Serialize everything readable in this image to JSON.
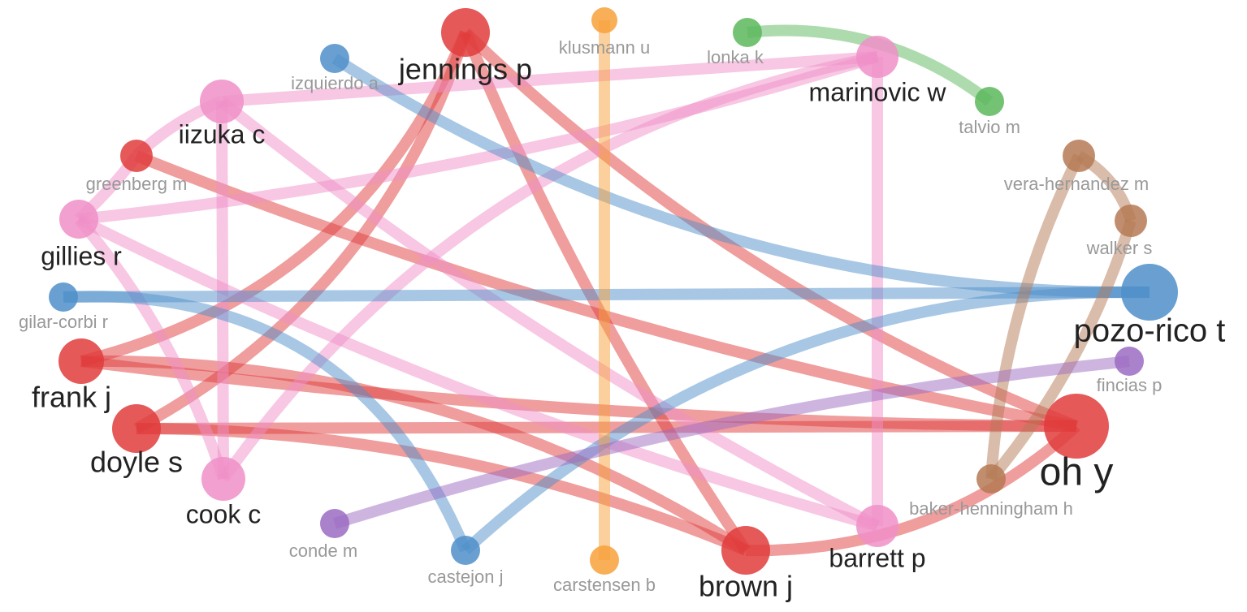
{
  "nodes": [
    {
      "label": "jennings p",
      "color": "#e03c3c"
    },
    {
      "label": "klusmann u",
      "color": "#f7a13a"
    },
    {
      "label": "lonka k",
      "color": "#5cb85c"
    },
    {
      "label": "marinovic w",
      "color": "#f08fc8"
    },
    {
      "label": "talvio m",
      "color": "#5cb85c"
    },
    {
      "label": "izquierdo a",
      "color": "#4f8fc9"
    },
    {
      "label": "iizuka c",
      "color": "#f08fc8"
    },
    {
      "label": "greenberg m",
      "color": "#e03c3c"
    },
    {
      "label": "gillies r",
      "color": "#f08fc8"
    },
    {
      "label": "gilar-corbi r",
      "color": "#4f8fc9"
    },
    {
      "label": "frank j",
      "color": "#e03c3c"
    },
    {
      "label": "doyle s",
      "color": "#e03c3c"
    },
    {
      "label": "cook c",
      "color": "#f08fc8"
    },
    {
      "label": "conde m",
      "color": "#9b6bc2"
    },
    {
      "label": "castejon j",
      "color": "#4f8fc9"
    },
    {
      "label": "carstensen b",
      "color": "#f7a13a"
    },
    {
      "label": "brown j",
      "color": "#e03c3c"
    },
    {
      "label": "barrett p",
      "color": "#f08fc8"
    },
    {
      "label": "baker-henningham h",
      "color": "#b57a55"
    },
    {
      "label": "oh y",
      "color": "#e03c3c"
    },
    {
      "label": "fincias p",
      "color": "#9b6bc2"
    },
    {
      "label": "pozo-rico t",
      "color": "#4f8fc9"
    },
    {
      "label": "walker s",
      "color": "#b57a55"
    },
    {
      "label": "vera-hernandez m",
      "color": "#b57a55"
    }
  ]
}
